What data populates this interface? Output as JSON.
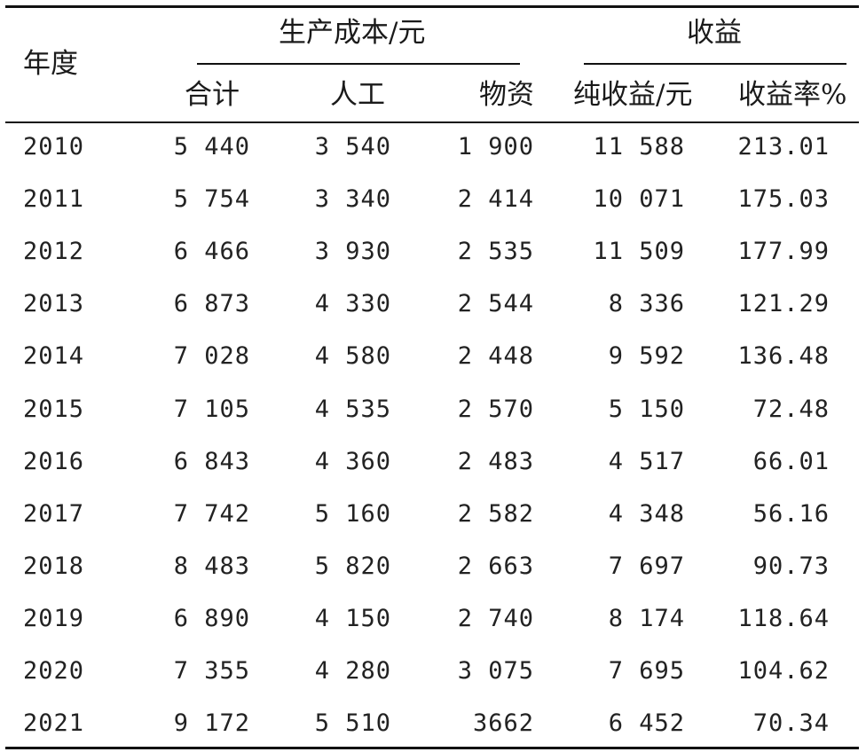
{
  "table": {
    "header": {
      "year": "年度",
      "cost_group": "生产成本/元",
      "benefit_group": "收益",
      "cost_total": "合计",
      "cost_labor": "人工",
      "cost_material": "物资",
      "net_benefit": "纯收益/元",
      "benefit_rate": "收益率%"
    },
    "rows": [
      {
        "year": "2010",
        "total": "5 440",
        "labor": "3 540",
        "material": "1 900",
        "net": "11 588",
        "rate": "213.01"
      },
      {
        "year": "2011",
        "total": "5 754",
        "labor": "3 340",
        "material": "2 414",
        "net": "10 071",
        "rate": "175.03"
      },
      {
        "year": "2012",
        "total": "6 466",
        "labor": "3 930",
        "material": "2 535",
        "net": "11 509",
        "rate": "177.99"
      },
      {
        "year": "2013",
        "total": "6 873",
        "labor": "4 330",
        "material": "2 544",
        "net": "8 336",
        "rate": "121.29"
      },
      {
        "year": "2014",
        "total": "7 028",
        "labor": "4 580",
        "material": "2 448",
        "net": "9 592",
        "rate": "136.48"
      },
      {
        "year": "2015",
        "total": "7 105",
        "labor": "4 535",
        "material": "2 570",
        "net": "5 150",
        "rate": "72.48"
      },
      {
        "year": "2016",
        "total": "6 843",
        "labor": "4 360",
        "material": "2 483",
        "net": "4 517",
        "rate": "66.01"
      },
      {
        "year": "2017",
        "total": "7 742",
        "labor": "5 160",
        "material": "2 582",
        "net": "4 348",
        "rate": "56.16"
      },
      {
        "year": "2018",
        "total": "8 483",
        "labor": "5 820",
        "material": "2 663",
        "net": "7 697",
        "rate": "90.73"
      },
      {
        "year": "2019",
        "total": "6 890",
        "labor": "4 150",
        "material": "2 740",
        "net": "8 174",
        "rate": "118.64"
      },
      {
        "year": "2020",
        "total": "7 355",
        "labor": "4 280",
        "material": "3 075",
        "net": "7 695",
        "rate": "104.62"
      },
      {
        "year": "2021",
        "total": "9 172",
        "labor": "5 510",
        "material": "3662",
        "net": "6 452",
        "rate": "70.34"
      }
    ]
  }
}
